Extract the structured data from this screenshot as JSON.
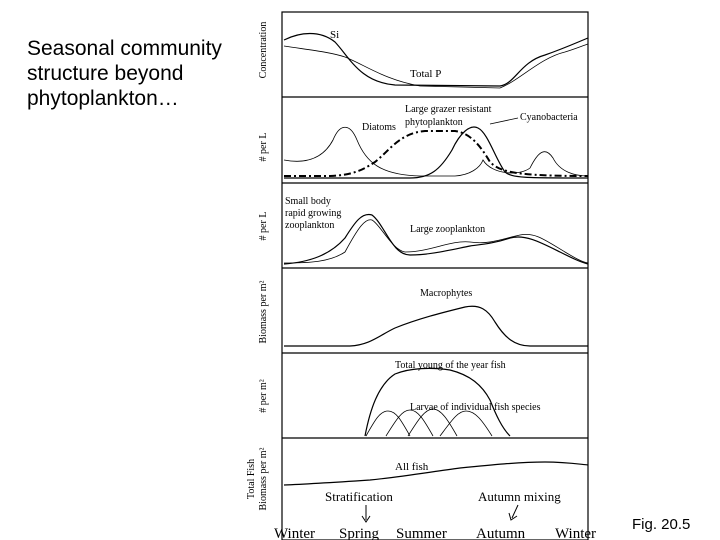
{
  "slide": {
    "title": "Seasonal community structure beyond phytoplankton…",
    "figure_label": "Fig. 20.5"
  },
  "figure": {
    "panels": [
      {
        "ylabel": "Concentration",
        "curve_labels": [
          "Si",
          "Total P"
        ]
      },
      {
        "ylabel": "# per L",
        "curve_labels": [
          "Diatoms",
          "Large grazer resistant",
          "phytoplankton",
          "Cyanobacteria"
        ]
      },
      {
        "ylabel": "# per L",
        "curve_labels": [
          "Small body",
          "rapid growing",
          "zooplankton",
          "Large zooplankton"
        ]
      },
      {
        "ylabel": "Biomass per m²",
        "curve_labels": [
          "Macrophytes"
        ]
      },
      {
        "ylabel": "# per m²",
        "curve_labels": [
          "Total young of the year fish",
          "Larvae of individual fish species"
        ]
      },
      {
        "ylabel_lines": [
          "Total Fish",
          "Biomass per m²"
        ],
        "curve_labels": [
          "All fish"
        ]
      }
    ],
    "annotations": {
      "stratification": "Stratification",
      "autumn_mixing": "Autumn mixing"
    },
    "seasons": [
      "Winter",
      "Spring",
      "Summer",
      "Autumn",
      "Winter"
    ]
  }
}
